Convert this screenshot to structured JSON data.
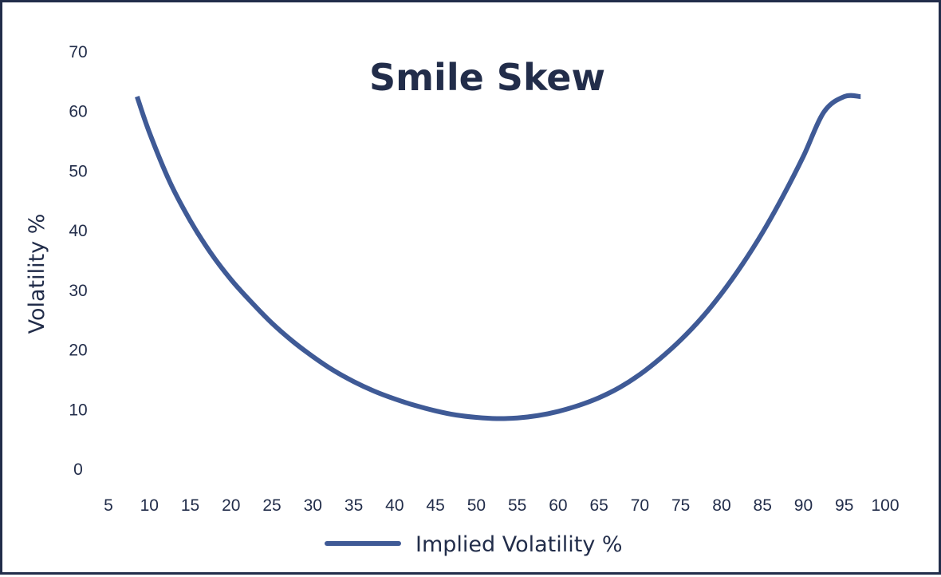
{
  "chart_data": {
    "type": "line",
    "title": "Smile Skew",
    "xlabel": "",
    "ylabel": "Volatility %",
    "xlim": [
      5,
      100
    ],
    "ylim": [
      0,
      70
    ],
    "x_ticks": [
      5,
      10,
      15,
      20,
      25,
      30,
      35,
      40,
      45,
      50,
      55,
      60,
      65,
      70,
      75,
      80,
      85,
      90,
      95,
      100
    ],
    "y_ticks": [
      0,
      10,
      20,
      30,
      40,
      50,
      60,
      70
    ],
    "grid": false,
    "legend": "bottom-center",
    "colors": {
      "line": "#3f5a96",
      "text": "#222d4a",
      "border": "#222d4a"
    },
    "series": [
      {
        "name": "Implied Volatility %",
        "x": [
          8.5,
          10,
          12.5,
          15,
          17.5,
          20,
          22.5,
          25,
          27.5,
          30,
          32.5,
          35,
          37.5,
          40,
          42.5,
          45,
          47.5,
          50,
          52.5,
          55,
          57.5,
          60,
          62.5,
          65,
          67.5,
          70,
          72.5,
          75,
          77.5,
          80,
          82.5,
          85,
          87.5,
          90,
          92.5,
          95,
          97
        ],
        "y": [
          62.5,
          56.5,
          48.2,
          41.7,
          36.3,
          31.8,
          28.0,
          24.5,
          21.5,
          18.9,
          16.6,
          14.7,
          13.1,
          11.8,
          10.7,
          9.8,
          9.1,
          8.7,
          8.5,
          8.6,
          9.0,
          9.7,
          10.7,
          12.0,
          13.7,
          15.9,
          18.6,
          21.7,
          25.3,
          29.5,
          34.3,
          39.7,
          45.8,
          52.5,
          59.9,
          62.5,
          62.5
        ]
      }
    ]
  }
}
